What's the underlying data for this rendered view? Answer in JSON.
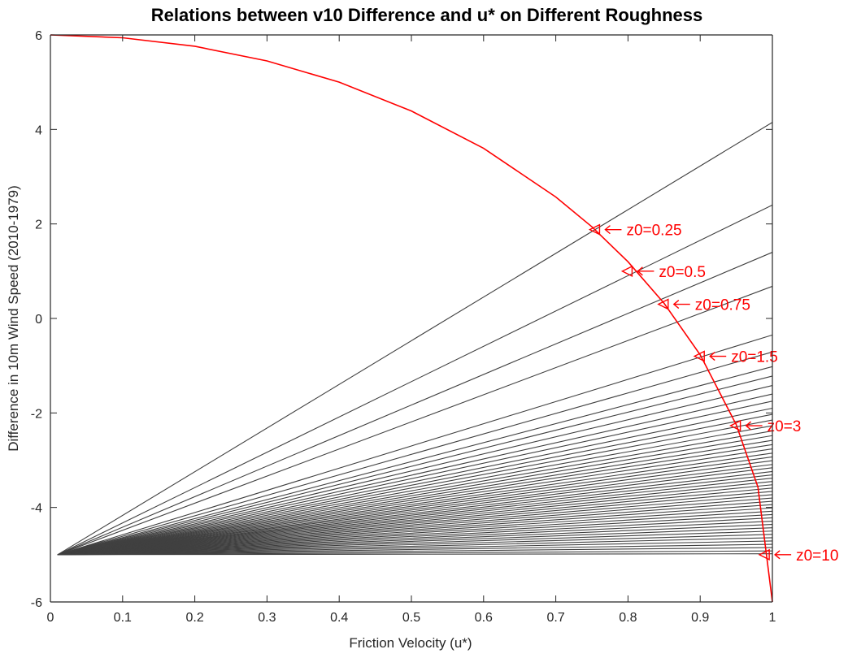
{
  "chart_data": {
    "type": "line",
    "title": "Relations between v10 Difference and u* on Different Roughness",
    "xlabel": "Friction Velocity (u*)",
    "ylabel": "Difference in 10m Wind Speed (2010-1979)",
    "xlim": [
      0,
      1
    ],
    "ylim": [
      -6,
      6
    ],
    "xticks": [
      "0",
      "0.1",
      "0.2",
      "0.3",
      "0.4",
      "0.5",
      "0.6",
      "0.7",
      "0.8",
      "0.9",
      "1"
    ],
    "yticks": [
      "6",
      "4",
      "2",
      "0",
      "-2",
      "-4",
      "-6"
    ],
    "grid": false,
    "colors": {
      "lines": "#404040",
      "curve": "#ff0000",
      "axis": "#262626"
    },
    "fan_lines": {
      "description_start": [
        0.01,
        -5
      ],
      "x": [
        0.01,
        1
      ],
      "end_values_at_u1": [
        4.15,
        2.4,
        1.4,
        0.68,
        -0.35,
        -0.71,
        -1.02,
        -1.22,
        -1.42,
        -1.6,
        -1.75,
        -1.9,
        -2.03,
        -2.15,
        -2.27,
        -2.38,
        -2.48,
        -2.58,
        -2.67,
        -2.76,
        -2.85,
        -2.93,
        -3.01,
        -3.09,
        -3.16,
        -3.24,
        -3.31,
        -3.38,
        -3.45,
        -3.52,
        -3.59,
        -3.66,
        -3.73,
        -3.8,
        -3.87,
        -3.94,
        -4.01,
        -4.08,
        -4.15,
        -4.22,
        -4.29,
        -4.36,
        -4.43,
        -4.5,
        -4.57,
        -4.64,
        -4.71,
        -4.78,
        -4.85,
        -4.92,
        -4.98
      ]
    },
    "curve": {
      "name": "",
      "x": [
        0,
        0.1,
        0.2,
        0.3,
        0.4,
        0.5,
        0.6,
        0.7,
        0.75,
        0.8,
        0.85,
        0.9,
        0.95,
        0.98,
        1
      ],
      "y": [
        6,
        5.94,
        5.76,
        5.45,
        5.0,
        4.39,
        3.6,
        2.57,
        1.94,
        1.2,
        0.32,
        -0.77,
        -2.25,
        -3.57,
        -6
      ]
    },
    "annotations": [
      {
        "text": "z0=0.25",
        "x": 0.755,
        "y": 1.88
      },
      {
        "text": "z0=0.5",
        "x": 0.8,
        "y": 1.0
      },
      {
        "text": "z0=0.75",
        "x": 0.85,
        "y": 0.3
      },
      {
        "text": "z0=1.5",
        "x": 0.9,
        "y": -0.8
      },
      {
        "text": "z0=3",
        "x": 0.95,
        "y": -2.27
      },
      {
        "text": "z0=10",
        "x": 0.99,
        "y": -5.0
      }
    ]
  }
}
